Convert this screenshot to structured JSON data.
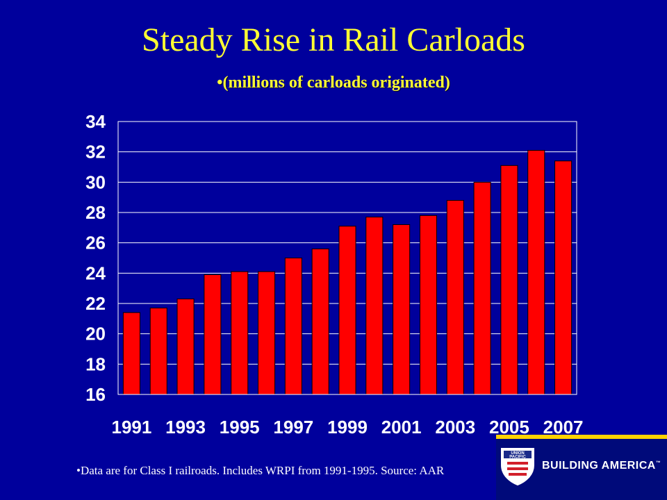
{
  "title": "Steady Rise in Rail Carloads",
  "subtitle": "•(millions of carloads originated)",
  "footnote": "•Data are for Class I railroads.  Includes WRPI from 1991-1995.  Source:  AAR",
  "logo": {
    "shield_text": [
      "UNION",
      "PACIFIC"
    ],
    "tagline": "BUILDING AMERICA",
    "trademark": "™"
  },
  "colors": {
    "background": "#00009c",
    "title": "#ffff33",
    "bar_fill": "#ff0000",
    "bar_stroke": "#000000",
    "plot_border": "#ffffff",
    "gridline": "#ffffff",
    "accent": "#ffd200"
  },
  "chart_data": {
    "type": "bar",
    "categories": [
      "1991",
      "1992",
      "1993",
      "1994",
      "1995",
      "1996",
      "1997",
      "1998",
      "1999",
      "2000",
      "2001",
      "2002",
      "2003",
      "2004",
      "2005",
      "2006",
      "2007"
    ],
    "tick_labels_x": [
      "1991",
      "1993",
      "1995",
      "1997",
      "1999",
      "2001",
      "2003",
      "2005",
      "2007"
    ],
    "values": [
      21.4,
      21.7,
      22.3,
      23.9,
      24.1,
      24.1,
      25.0,
      25.6,
      27.1,
      27.7,
      27.2,
      27.8,
      28.8,
      30.0,
      31.1,
      32.1,
      31.4
    ],
    "title": "Steady Rise in Rail Carloads",
    "subtitle": "•(millions of carloads originated)",
    "ylim": [
      16,
      34
    ],
    "yticks": [
      16,
      18,
      20,
      22,
      24,
      26,
      28,
      30,
      32,
      34
    ],
    "grid": true
  }
}
